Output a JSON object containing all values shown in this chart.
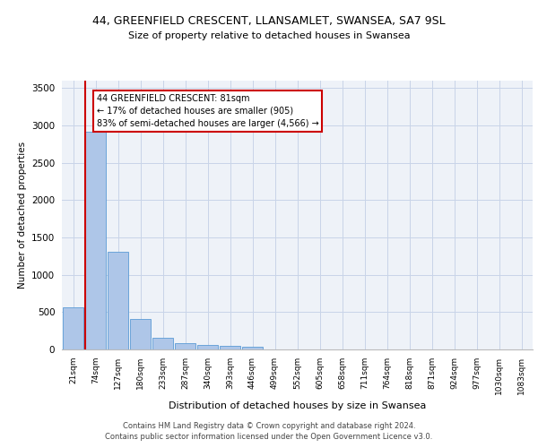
{
  "title1": "44, GREENFIELD CRESCENT, LLANSAMLET, SWANSEA, SA7 9SL",
  "title2": "Size of property relative to detached houses in Swansea",
  "xlabel": "Distribution of detached houses by size in Swansea",
  "ylabel": "Number of detached properties",
  "categories": [
    "21sqm",
    "74sqm",
    "127sqm",
    "180sqm",
    "233sqm",
    "287sqm",
    "340sqm",
    "393sqm",
    "446sqm",
    "499sqm",
    "552sqm",
    "605sqm",
    "658sqm",
    "711sqm",
    "764sqm",
    "818sqm",
    "871sqm",
    "924sqm",
    "977sqm",
    "1030sqm",
    "1083sqm"
  ],
  "values": [
    570,
    2920,
    1310,
    410,
    155,
    80,
    55,
    45,
    40,
    0,
    0,
    0,
    0,
    0,
    0,
    0,
    0,
    0,
    0,
    0,
    0
  ],
  "bar_color": "#aec6e8",
  "bar_edgecolor": "#5b9bd5",
  "grid_color": "#c8d4e8",
  "background_color": "#eef2f8",
  "vline_color": "#cc0000",
  "annotation_box_text": "44 GREENFIELD CRESCENT: 81sqm\n← 17% of detached houses are smaller (905)\n83% of semi-detached houses are larger (4,566) →",
  "footnote1": "Contains HM Land Registry data © Crown copyright and database right 2024.",
  "footnote2": "Contains public sector information licensed under the Open Government Licence v3.0.",
  "ylim": [
    0,
    3600
  ],
  "yticks": [
    0,
    500,
    1000,
    1500,
    2000,
    2500,
    3000,
    3500
  ]
}
